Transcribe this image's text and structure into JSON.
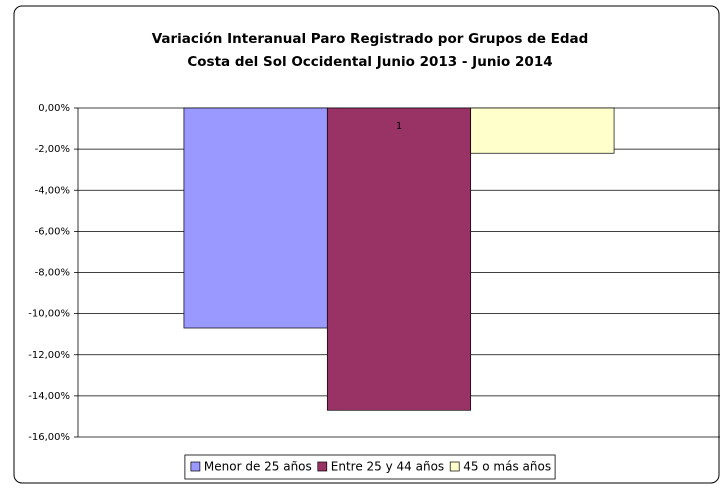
{
  "chart_data": {
    "type": "bar",
    "title": "Variación Interanual Paro Registrado por Grupos de Edad",
    "subtitle": "Costa del Sol Occidental Junio 2013 - Junio 2014",
    "categories": [
      "1"
    ],
    "series": [
      {
        "name": "Menor de 25 años",
        "color": "#9999ff",
        "values": [
          -10.7
        ]
      },
      {
        "name": "Entre 25 y 44 años",
        "color": "#993366",
        "values": [
          -14.7
        ]
      },
      {
        "name": "45 o más años",
        "color": "#ffffcc",
        "values": [
          -2.2
        ]
      }
    ],
    "ylim": [
      -16,
      0
    ],
    "yticks": [
      {
        "value": 0,
        "label": "0,00%"
      },
      {
        "value": -2,
        "label": "-2,00%"
      },
      {
        "value": -4,
        "label": "-4,00%"
      },
      {
        "value": -6,
        "label": "-6,00%"
      },
      {
        "value": -8,
        "label": "-8,00%"
      },
      {
        "value": -10,
        "label": "-10,00%"
      },
      {
        "value": -12,
        "label": "-12,00%"
      },
      {
        "value": -14,
        "label": "-14,00%"
      },
      {
        "value": -16,
        "label": "-16,00%"
      }
    ],
    "grid": true,
    "legend": "bottom"
  }
}
